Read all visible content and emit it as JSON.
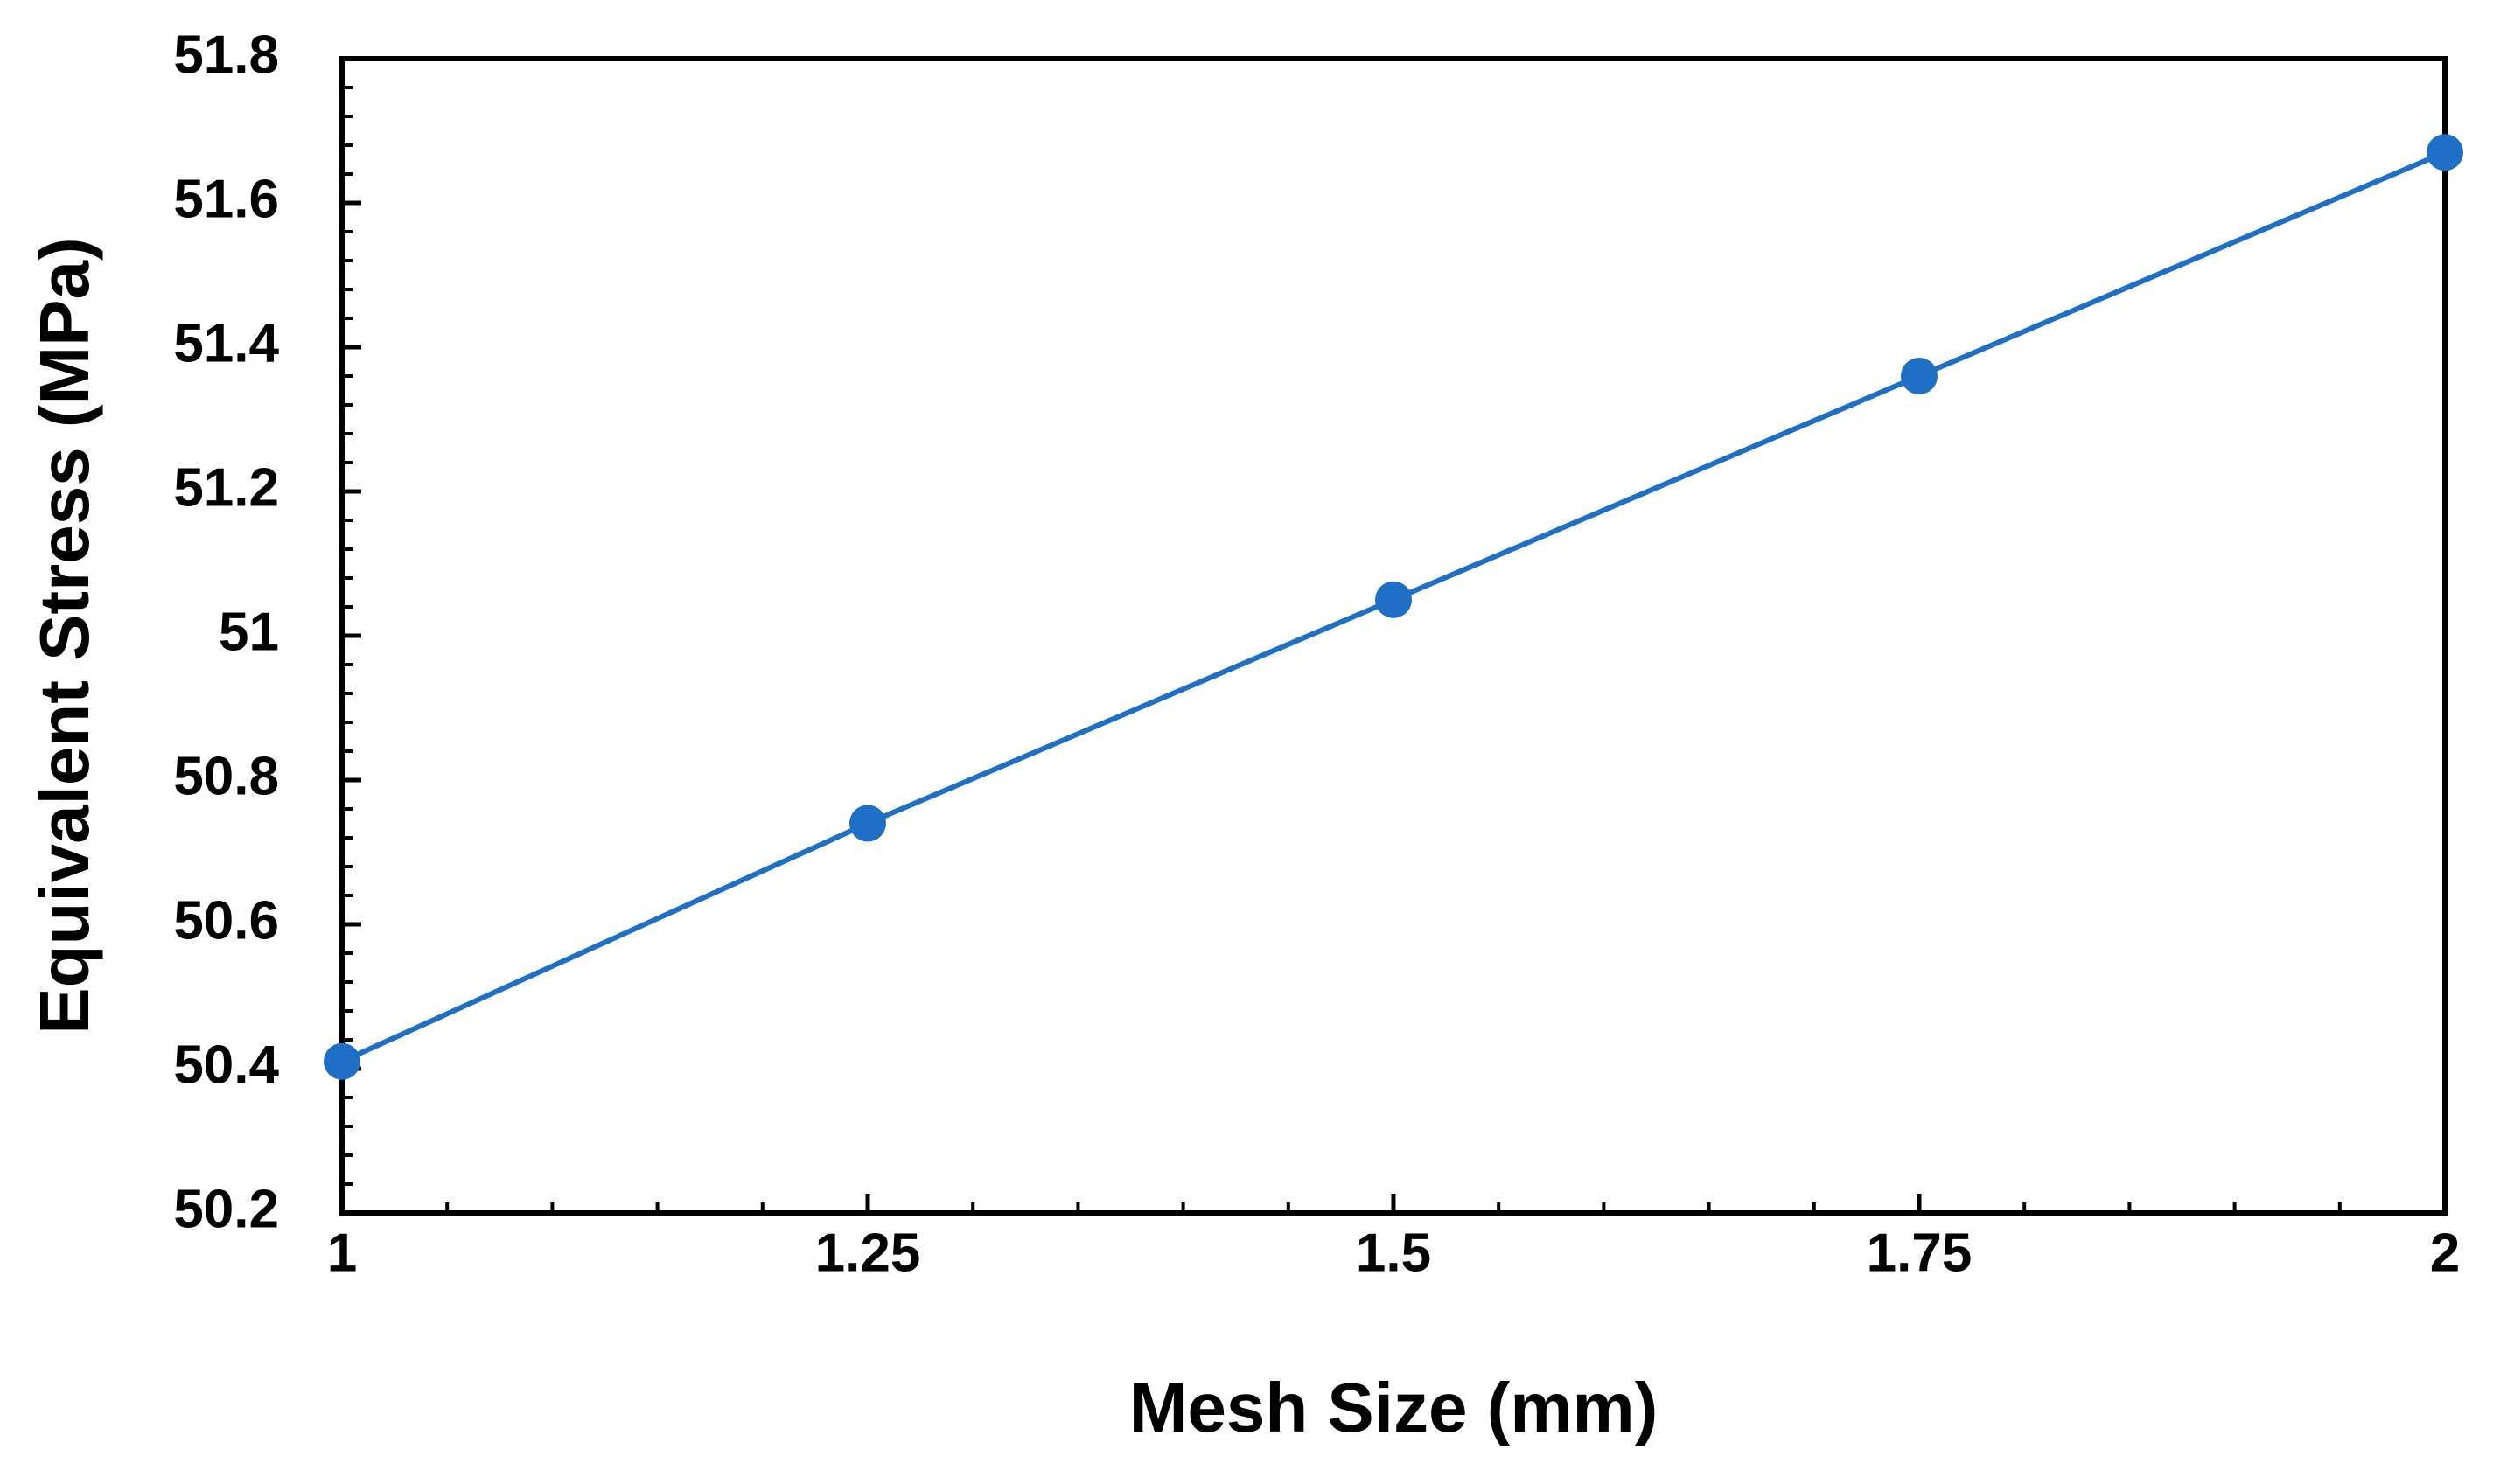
{
  "chart_data": {
    "type": "line",
    "x_label": "Mesh Size (mm)",
    "y_label": "Equivalent Stress (MPa)",
    "x": [
      1,
      1.25,
      1.5,
      1.75,
      2
    ],
    "series": [
      {
        "color": "#1f6fc6",
        "values": [
          50.41,
          50.74,
          51.05,
          51.36,
          51.67
        ]
      }
    ],
    "xlim": [
      1,
      2
    ],
    "xticks": [
      1,
      1.25,
      1.5,
      1.75,
      2
    ],
    "ylim": [
      50.2,
      51.8
    ],
    "yticks": [
      50.2,
      50.4,
      50.6,
      50.8,
      51,
      51.2,
      51.4,
      51.6,
      51.8
    ],
    "grid": false
  }
}
